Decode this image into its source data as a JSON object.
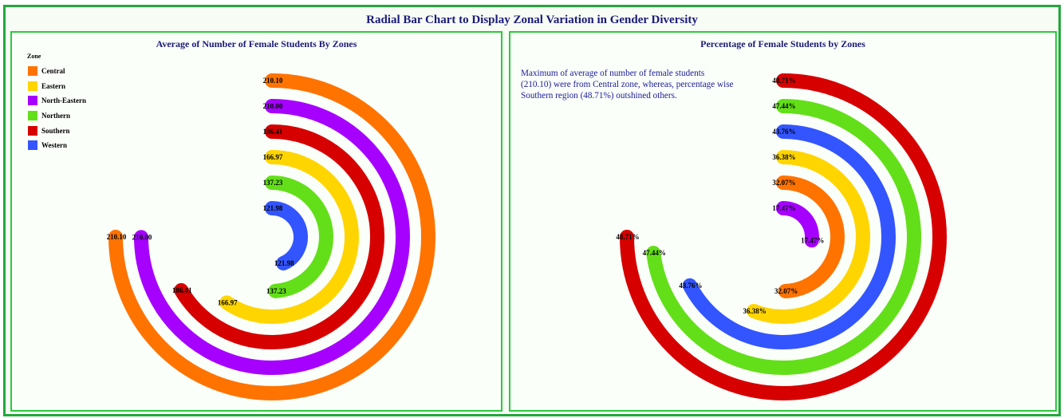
{
  "title": "Radial Bar Chart to Display Zonal Variation in Gender Diversity",
  "left_panel": {
    "title": "Average of Number of Female Students By Zones",
    "legend_title": "Zone",
    "legend": [
      {
        "label": "Central",
        "color": "#ff7300"
      },
      {
        "label": "Eastern",
        "color": "#ffd500"
      },
      {
        "label": "North-Eastern",
        "color": "#a600ff"
      },
      {
        "label": "Northern",
        "color": "#63df19"
      },
      {
        "label": "Southern",
        "color": "#d60000"
      },
      {
        "label": "Western",
        "color": "#3355ff"
      }
    ]
  },
  "right_panel": {
    "title": "Percentage of Female Students by Zones",
    "note": "Maximum of average of number of female students (210.10) were from Central zone, whereas, percentage wise Southern region (48.71%)  outshined others."
  },
  "chart_data": [
    {
      "type": "radial-bar",
      "title": "Average of Number of Female Students By Zones",
      "legend_title": "Zone",
      "series": [
        {
          "category": "Central",
          "value": 210.1,
          "label": "210.10",
          "color": "#ff7300"
        },
        {
          "category": "North-Eastern",
          "value": 210.0,
          "label": "210.00",
          "color": "#a600ff"
        },
        {
          "category": "Southern",
          "value": 186.41,
          "label": "186.41",
          "color": "#d60000"
        },
        {
          "category": "Eastern",
          "value": 166.97,
          "label": "166.97",
          "color": "#ffd500"
        },
        {
          "category": "Northern",
          "value": 137.23,
          "label": "137.23",
          "color": "#63df19"
        },
        {
          "category": "Western",
          "value": 121.98,
          "label": "121.98",
          "color": "#3355ff"
        }
      ]
    },
    {
      "type": "radial-bar",
      "title": "Percentage of Female Students by Zones",
      "series": [
        {
          "category": "Southern",
          "value": 48.71,
          "label": "48.71%",
          "color": "#d60000"
        },
        {
          "category": "Northern",
          "value": 47.44,
          "label": "47.44%",
          "color": "#63df19"
        },
        {
          "category": "Western",
          "value": 43.76,
          "label": "43.76%",
          "color": "#3355ff"
        },
        {
          "category": "Eastern",
          "value": 36.38,
          "label": "36.38%",
          "color": "#ffd500"
        },
        {
          "category": "Central",
          "value": 32.07,
          "label": "32.07%",
          "color": "#ff7300"
        },
        {
          "category": "North-Eastern",
          "value": 17.47,
          "label": "17.47%",
          "color": "#a600ff"
        }
      ]
    }
  ]
}
